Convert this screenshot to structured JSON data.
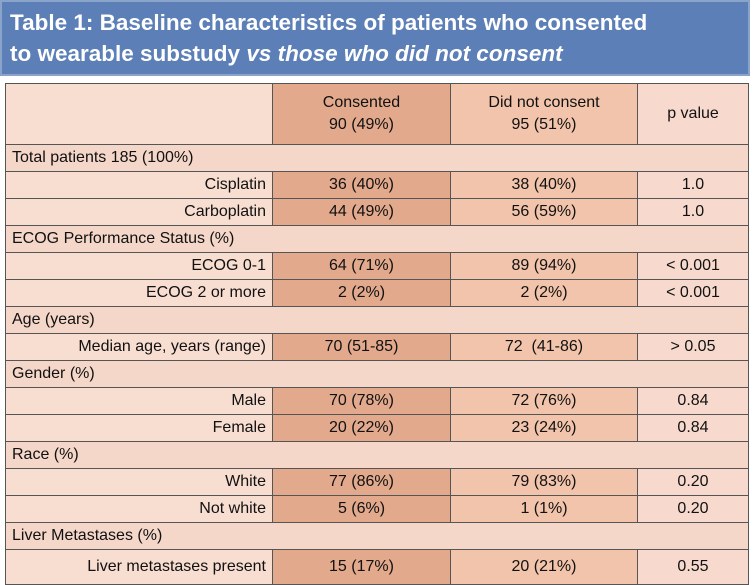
{
  "title": {
    "line1": "Table 1: Baseline characteristics of patients who consented",
    "line2_normal": "to wearable substudy ",
    "line2_italic": "vs those who did not consent"
  },
  "table": {
    "header": [
      {
        "label": "Consented",
        "count": "90 (49%)"
      },
      {
        "label": "Did not consent",
        "count": "95 (51%)"
      },
      {
        "label": "p value"
      }
    ],
    "sections": [
      {
        "title": "Total patients 185 (100%)",
        "rows": [
          {
            "label": "Cisplatin",
            "values": [
              "36 (40%)",
              "38 (40%)",
              "1.0"
            ]
          },
          {
            "label": "Carboplatin",
            "values": [
              "44 (49%)",
              "56 (59%)",
              "1.0"
            ]
          }
        ]
      },
      {
        "title": "ECOG Performance Status (%)",
        "rows": [
          {
            "label": "ECOG 0-1",
            "values": [
              "64 (71%)",
              "89 (94%)",
              "< 0.001"
            ]
          },
          {
            "label": "ECOG 2 or more",
            "values": [
              "2 (2%)",
              "2 (2%)",
              "< 0.001"
            ]
          }
        ]
      },
      {
        "title": "Age (years)",
        "rows": [
          {
            "label": "Median age, years (range)",
            "values": [
              "70 (51-85)",
              "72  (41-86)",
              "> 0.05"
            ]
          }
        ]
      },
      {
        "title": "Gender (%)",
        "rows": [
          {
            "label": "Male",
            "values": [
              "70 (78%)",
              "72 (76%)",
              "0.84"
            ]
          },
          {
            "label": "Female",
            "values": [
              "20 (22%)",
              "23 (24%)",
              "0.84"
            ]
          }
        ]
      },
      {
        "title": "Race (%)",
        "rows": [
          {
            "label": "White",
            "values": [
              "77 (86%)",
              "79 (83%)",
              "0.20"
            ]
          },
          {
            "label": "Not white",
            "values": [
              "5 (6%)",
              "1 (1%)",
              "0.20"
            ]
          }
        ]
      },
      {
        "title": "Liver Metastases (%)",
        "rows": [
          {
            "label": "Liver metastases present",
            "values": [
              "15 (17%)",
              "20 (21%)",
              "0.55"
            ]
          }
        ]
      }
    ]
  }
}
